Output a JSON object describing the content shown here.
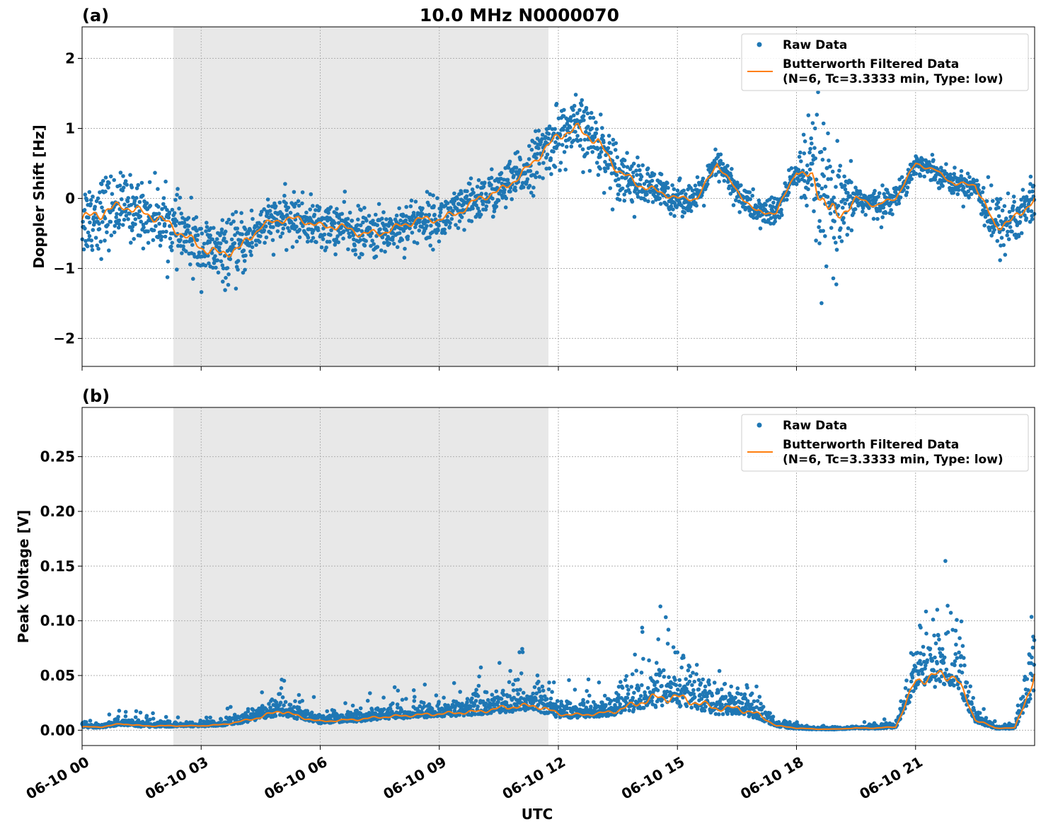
{
  "chart_data": [
    {
      "type": "line",
      "panel_label": "(a)",
      "title": "10.0 MHz N0000070",
      "xlabel": "",
      "ylabel": "Doppler Shift [Hz]",
      "xlim_hours": [
        0,
        24
      ],
      "ylim": [
        -2.4,
        2.45
      ],
      "yticks": [
        -2,
        -1,
        0,
        1,
        2
      ],
      "ytick_labels": [
        "−2",
        "−1",
        "0",
        "1",
        "2"
      ],
      "shaded_hours": [
        2.3,
        11.75
      ],
      "grid": true,
      "legend_position": "top-right",
      "legend": [
        "Raw Data",
        "Butterworth Filtered Data",
        "(N=6, Tc=3.3333 min, Type: low)"
      ],
      "series": [
        {
          "name": "Raw Data",
          "kind": "scatter",
          "color": "#1f77b4",
          "x_hours": [
            0,
            0.5,
            1,
            1.5,
            2,
            2.5,
            3,
            3.5,
            4,
            4.5,
            5,
            5.5,
            6,
            6.5,
            7,
            7.5,
            8,
            8.5,
            9,
            9.5,
            10,
            10.5,
            11,
            11.5,
            12,
            12.5,
            13,
            13.5,
            14,
            14.5,
            15,
            15.5,
            16,
            16.5,
            17,
            17.5,
            18,
            18.5,
            19,
            19.5,
            20,
            20.5,
            21,
            21.5,
            22,
            22.5,
            23,
            23.5,
            24
          ],
          "y_center": [
            -0.3,
            -0.2,
            -0.1,
            -0.2,
            -0.3,
            -0.5,
            -0.7,
            -0.8,
            -0.7,
            -0.4,
            -0.3,
            -0.3,
            -0.4,
            -0.4,
            -0.5,
            -0.5,
            -0.4,
            -0.3,
            -0.3,
            -0.2,
            0.0,
            0.1,
            0.3,
            0.6,
            0.9,
            1.0,
            0.8,
            0.4,
            0.2,
            0.1,
            0.0,
            0.0,
            0.5,
            0.1,
            -0.2,
            -0.2,
            0.4,
            0.2,
            -0.3,
            0.0,
            -0.1,
            0.0,
            0.5,
            0.4,
            0.2,
            0.2,
            -0.4,
            -0.3,
            0.0
          ],
          "y_spread": [
            0.5,
            0.5,
            0.4,
            0.4,
            0.4,
            0.4,
            0.4,
            0.4,
            0.4,
            0.3,
            0.3,
            0.3,
            0.3,
            0.3,
            0.3,
            0.3,
            0.3,
            0.3,
            0.3,
            0.3,
            0.3,
            0.3,
            0.3,
            0.35,
            0.4,
            0.4,
            0.4,
            0.35,
            0.3,
            0.25,
            0.2,
            0.2,
            0.2,
            0.2,
            0.2,
            0.2,
            0.2,
            1.0,
            0.8,
            0.2,
            0.2,
            0.15,
            0.15,
            0.15,
            0.15,
            0.2,
            0.4,
            0.4,
            0.3
          ]
        },
        {
          "name": "Butterworth Filtered Data",
          "kind": "line",
          "color": "#ff7f0e",
          "x_hours": [
            0,
            0.5,
            1,
            1.5,
            2,
            2.5,
            3,
            3.5,
            4,
            4.5,
            5,
            5.5,
            6,
            6.5,
            7,
            7.5,
            8,
            8.5,
            9,
            9.5,
            10,
            10.5,
            11,
            11.5,
            12,
            12.5,
            13,
            13.5,
            14,
            14.5,
            15,
            15.5,
            16,
            16.5,
            17,
            17.5,
            18,
            18.5,
            19,
            19.5,
            20,
            20.5,
            21,
            21.5,
            22,
            22.5,
            23,
            23.5,
            24
          ],
          "y": [
            -0.3,
            -0.2,
            -0.1,
            -0.2,
            -0.3,
            -0.5,
            -0.7,
            -0.8,
            -0.7,
            -0.4,
            -0.3,
            -0.3,
            -0.4,
            -0.4,
            -0.5,
            -0.5,
            -0.4,
            -0.3,
            -0.3,
            -0.2,
            0.0,
            0.1,
            0.3,
            0.6,
            0.9,
            1.0,
            0.8,
            0.4,
            0.2,
            0.1,
            0.0,
            0.0,
            0.5,
            0.1,
            -0.2,
            -0.2,
            0.4,
            0.2,
            -0.3,
            0.0,
            -0.1,
            0.0,
            0.5,
            0.4,
            0.2,
            0.2,
            -0.4,
            -0.3,
            0.0
          ]
        }
      ]
    },
    {
      "type": "line",
      "panel_label": "(b)",
      "title": "",
      "xlabel": "UTC",
      "ylabel": "Peak Voltage [V]",
      "xlim_hours": [
        0,
        24
      ],
      "ylim": [
        -0.014,
        0.295
      ],
      "yticks": [
        0.0,
        0.05,
        0.1,
        0.15,
        0.2,
        0.25
      ],
      "ytick_labels": [
        "0.00",
        "0.05",
        "0.10",
        "0.15",
        "0.20",
        "0.25"
      ],
      "xticks_hours": [
        0,
        3,
        6,
        9,
        12,
        15,
        18,
        21
      ],
      "xtick_labels": [
        "06-10 00",
        "06-10 03",
        "06-10 06",
        "06-10 09",
        "06-10 12",
        "06-10 15",
        "06-10 18",
        "06-10 21"
      ],
      "shaded_hours": [
        2.3,
        11.75
      ],
      "grid": true,
      "legend_position": "top-right",
      "legend": [
        "Raw Data",
        "Butterworth Filtered Data",
        "(N=6, Tc=3.3333 min, Type: low)"
      ],
      "series": [
        {
          "name": "Raw Data",
          "kind": "scatter",
          "color": "#1f77b4",
          "x_hours": [
            0,
            0.5,
            1,
            1.5,
            2,
            2.5,
            3,
            3.5,
            4,
            4.5,
            5,
            5.5,
            6,
            6.5,
            7,
            7.5,
            8,
            8.5,
            9,
            9.5,
            10,
            10.5,
            11,
            11.5,
            12,
            12.5,
            13,
            13.5,
            14,
            14.5,
            15,
            15.5,
            16,
            16.5,
            17,
            17.5,
            18,
            18.5,
            19,
            19.5,
            20,
            20.5,
            21,
            21.5,
            22,
            22.5,
            23,
            23.5,
            24
          ],
          "y_center": [
            0.003,
            0.003,
            0.006,
            0.004,
            0.004,
            0.004,
            0.004,
            0.005,
            0.008,
            0.012,
            0.018,
            0.012,
            0.008,
            0.009,
            0.01,
            0.012,
            0.013,
            0.014,
            0.015,
            0.016,
            0.017,
            0.02,
            0.022,
            0.022,
            0.015,
            0.014,
            0.015,
            0.018,
            0.025,
            0.03,
            0.03,
            0.025,
            0.02,
            0.02,
            0.015,
            0.004,
            0.002,
            0.001,
            0.001,
            0.002,
            0.002,
            0.003,
            0.045,
            0.05,
            0.05,
            0.01,
            0.002,
            0.002,
            0.05
          ],
          "y_spread": [
            0.002,
            0.002,
            0.004,
            0.003,
            0.003,
            0.002,
            0.002,
            0.003,
            0.005,
            0.008,
            0.012,
            0.008,
            0.005,
            0.005,
            0.006,
            0.007,
            0.007,
            0.008,
            0.008,
            0.009,
            0.01,
            0.012,
            0.014,
            0.014,
            0.01,
            0.008,
            0.008,
            0.012,
            0.02,
            0.025,
            0.025,
            0.02,
            0.016,
            0.016,
            0.012,
            0.003,
            0.002,
            0.001,
            0.001,
            0.001,
            0.002,
            0.002,
            0.025,
            0.03,
            0.03,
            0.008,
            0.002,
            0.002,
            0.04
          ]
        },
        {
          "name": "Butterworth Filtered Data",
          "kind": "line",
          "color": "#ff7f0e",
          "x_hours": [
            0,
            0.5,
            1,
            1.5,
            2,
            2.5,
            3,
            3.5,
            4,
            4.5,
            5,
            5.5,
            6,
            6.5,
            7,
            7.5,
            8,
            8.5,
            9,
            9.5,
            10,
            10.5,
            11,
            11.5,
            12,
            12.5,
            13,
            13.5,
            14,
            14.5,
            15,
            15.5,
            16,
            16.5,
            17,
            17.5,
            18,
            18.5,
            19,
            19.5,
            20,
            20.5,
            21,
            21.5,
            22,
            22.5,
            23,
            23.5,
            24
          ],
          "y": [
            0.003,
            0.003,
            0.006,
            0.004,
            0.004,
            0.004,
            0.004,
            0.005,
            0.008,
            0.012,
            0.018,
            0.012,
            0.008,
            0.009,
            0.01,
            0.012,
            0.013,
            0.014,
            0.015,
            0.016,
            0.017,
            0.02,
            0.022,
            0.022,
            0.015,
            0.014,
            0.015,
            0.018,
            0.025,
            0.03,
            0.03,
            0.025,
            0.02,
            0.02,
            0.015,
            0.004,
            0.002,
            0.001,
            0.001,
            0.002,
            0.002,
            0.003,
            0.045,
            0.05,
            0.05,
            0.01,
            0.002,
            0.002,
            0.05
          ]
        }
      ]
    }
  ]
}
